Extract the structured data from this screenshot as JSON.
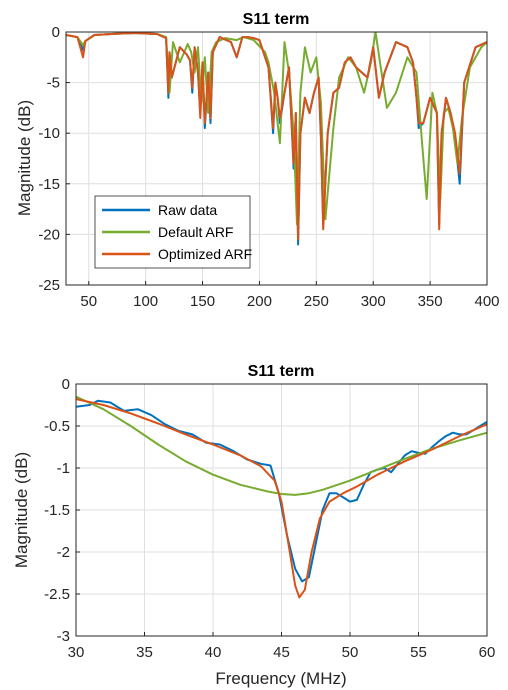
{
  "chart_data": [
    {
      "type": "line",
      "title": "S11 term",
      "xlabel": "",
      "ylabel": "Magnitude (dB)",
      "xlim": [
        30,
        400
      ],
      "ylim": [
        -25,
        0
      ],
      "xticks": [
        50,
        100,
        150,
        200,
        250,
        300,
        350,
        400
      ],
      "yticks": [
        0,
        -5,
        -10,
        -15,
        -20,
        -25
      ],
      "grid": true,
      "legend": {
        "placement": "bottom-left",
        "entries": [
          "Raw data",
          "Default ARF",
          "Optimized ARF"
        ]
      },
      "series": [
        {
          "name": "Raw data",
          "color": "#0072BD",
          "x": [
            30,
            40,
            45,
            47,
            55,
            70,
            90,
            110,
            118,
            120,
            121,
            123,
            130,
            136,
            139,
            141,
            143,
            146,
            148,
            150,
            152,
            155,
            157,
            159,
            165,
            175,
            180,
            185,
            190,
            195,
            200,
            205,
            208,
            212,
            214,
            216,
            218,
            222,
            226,
            230,
            232,
            234,
            236,
            240,
            244,
            248,
            252,
            254,
            256,
            260,
            265,
            270,
            275,
            280,
            285,
            290,
            295,
            300,
            305,
            310,
            320,
            330,
            335,
            338,
            340,
            344,
            350,
            356,
            358,
            360,
            364,
            368,
            372,
            376,
            380,
            390,
            400
          ],
          "y": [
            -0.3,
            -0.5,
            -1.8,
            -0.9,
            -0.3,
            -0.2,
            -0.1,
            -0.2,
            -0.6,
            -6.5,
            -2.0,
            -4.5,
            -1.5,
            -2.2,
            -2.8,
            -6.0,
            -1.5,
            -4.0,
            -8.0,
            -3.0,
            -9.5,
            -4.0,
            -9.0,
            -2.0,
            -0.5,
            -1.0,
            -2.5,
            -0.5,
            -0.5,
            -0.6,
            -0.8,
            -2.5,
            -3.5,
            -10.0,
            -5.0,
            -6.5,
            -9.0,
            -6.0,
            -3.5,
            -13.5,
            -8.0,
            -21.0,
            -10.0,
            -6.5,
            -8.0,
            -6.0,
            -4.5,
            -10.5,
            -19.0,
            -10.0,
            -6.0,
            -5.5,
            -3.0,
            -2.5,
            -3.5,
            -4.0,
            -4.5,
            -1.5,
            -6.5,
            -4.0,
            -1.0,
            -1.5,
            -3.0,
            -6.5,
            -9.5,
            -9.0,
            -6.5,
            -8.0,
            -19.0,
            -10.5,
            -6.5,
            -8.0,
            -10.5,
            -15.0,
            -5.0,
            -1.5,
            -1.0
          ]
        },
        {
          "name": "Default ARF",
          "color": "#77AC30",
          "x": [
            30,
            40,
            45,
            47,
            55,
            70,
            90,
            110,
            118,
            121,
            124,
            130,
            137,
            140,
            143,
            146,
            149,
            152,
            155,
            158,
            162,
            170,
            180,
            186,
            195,
            205,
            208,
            213,
            218,
            222,
            226,
            230,
            233,
            236,
            240,
            245,
            250,
            254,
            258,
            265,
            270,
            278,
            285,
            292,
            298,
            302,
            306,
            312,
            320,
            330,
            338,
            343,
            347,
            352,
            356,
            359,
            362,
            366,
            370,
            374,
            378,
            385,
            395,
            400
          ],
          "y": [
            -0.3,
            -0.5,
            -1.3,
            -0.9,
            -0.3,
            -0.2,
            -0.1,
            -0.2,
            -0.5,
            -6.0,
            -1.0,
            -3.0,
            -1.2,
            -2.0,
            -4.0,
            -1.5,
            -7.0,
            -2.5,
            -8.0,
            -2.0,
            -1.0,
            -0.6,
            -0.8,
            -0.5,
            -0.8,
            -2.0,
            -3.0,
            -6.0,
            -11.0,
            -1.0,
            -4.0,
            -10.0,
            -19.0,
            -6.0,
            -1.5,
            -4.0,
            -2.5,
            -7.0,
            -18.5,
            -9.5,
            -4.5,
            -2.5,
            -3.5,
            -6.0,
            -3.0,
            0.0,
            -3.0,
            -7.5,
            -6.0,
            -2.5,
            -4.0,
            -11.0,
            -16.5,
            -6.0,
            -8.0,
            -16.5,
            -8.0,
            -7.5,
            -9.5,
            -13.0,
            -8.5,
            -3.5,
            -1.5,
            -1.0
          ]
        },
        {
          "name": "Optimized ARF",
          "color": "#D95319",
          "x": [
            30,
            40,
            45,
            47,
            55,
            70,
            90,
            110,
            118,
            120,
            121,
            123,
            130,
            136,
            139,
            141,
            143,
            146,
            148,
            150,
            152,
            155,
            157,
            159,
            165,
            175,
            180,
            185,
            190,
            195,
            200,
            205,
            208,
            212,
            214,
            216,
            218,
            222,
            226,
            230,
            232,
            234,
            236,
            240,
            244,
            248,
            252,
            254,
            256,
            260,
            265,
            270,
            275,
            280,
            285,
            290,
            295,
            300,
            305,
            310,
            320,
            330,
            335,
            338,
            340,
            344,
            350,
            356,
            358,
            360,
            364,
            368,
            372,
            376,
            380,
            390,
            400
          ],
          "y": [
            -0.3,
            -0.5,
            -2.5,
            -0.9,
            -0.3,
            -0.2,
            -0.1,
            -0.2,
            -0.6,
            -6.0,
            -2.0,
            -4.5,
            -1.5,
            -2.2,
            -2.8,
            -5.5,
            -1.5,
            -4.0,
            -8.5,
            -3.0,
            -9.0,
            -4.0,
            -8.5,
            -2.0,
            -0.5,
            -1.0,
            -2.5,
            -0.5,
            -0.5,
            -0.6,
            -0.8,
            -2.5,
            -3.5,
            -9.5,
            -5.0,
            -6.5,
            -8.5,
            -6.0,
            -3.5,
            -13.0,
            -8.0,
            -20.5,
            -10.0,
            -6.5,
            -8.0,
            -6.0,
            -4.5,
            -10.0,
            -19.5,
            -10.0,
            -6.0,
            -5.5,
            -3.0,
            -2.5,
            -3.5,
            -4.0,
            -4.5,
            -1.5,
            -6.5,
            -4.0,
            -1.0,
            -1.5,
            -3.0,
            -6.5,
            -9.0,
            -9.0,
            -6.5,
            -8.0,
            -19.5,
            -10.0,
            -6.5,
            -8.0,
            -10.0,
            -14.0,
            -5.0,
            -1.5,
            -1.0
          ]
        }
      ]
    },
    {
      "type": "line",
      "title": "S11 term",
      "xlabel": "Frequency (MHz)",
      "ylabel": "Magnitude (dB)",
      "xlim": [
        30,
        60
      ],
      "ylim": [
        -3,
        0
      ],
      "xticks": [
        30,
        35,
        40,
        45,
        50,
        55,
        60
      ],
      "yticks": [
        0,
        -0.5,
        -1,
        -1.5,
        -2,
        -2.5,
        -3
      ],
      "grid": true,
      "series": [
        {
          "name": "Raw data",
          "color": "#0072BD",
          "x": [
            30,
            31,
            31.6,
            32.5,
            33.5,
            34.5,
            35.5,
            36.5,
            37.5,
            38.5,
            39.5,
            40.5,
            41.5,
            42.5,
            43.5,
            44.2,
            44.8,
            45.4,
            46,
            46.5,
            47,
            47.5,
            48,
            48.5,
            49,
            49.5,
            50,
            50.5,
            51,
            51.5,
            52,
            52.5,
            53,
            53.5,
            54,
            54.5,
            55,
            55.5,
            56,
            56.5,
            57,
            57.5,
            58,
            58.5,
            59,
            59.5,
            60
          ],
          "y": [
            -0.27,
            -0.25,
            -0.2,
            -0.22,
            -0.32,
            -0.3,
            -0.37,
            -0.48,
            -0.56,
            -0.6,
            -0.7,
            -0.72,
            -0.8,
            -0.9,
            -0.95,
            -0.97,
            -1.3,
            -1.8,
            -2.2,
            -2.35,
            -2.3,
            -1.9,
            -1.5,
            -1.3,
            -1.3,
            -1.35,
            -1.4,
            -1.38,
            -1.2,
            -1.05,
            -1.02,
            -1.0,
            -1.05,
            -0.95,
            -0.85,
            -0.8,
            -0.82,
            -0.83,
            -0.75,
            -0.68,
            -0.62,
            -0.58,
            -0.6,
            -0.6,
            -0.55,
            -0.5,
            -0.45
          ]
        },
        {
          "name": "Default ARF",
          "color": "#77AC30",
          "x": [
            30,
            32,
            34,
            36,
            38,
            40,
            42,
            44,
            45,
            46,
            47,
            48,
            50,
            52,
            54,
            56,
            58,
            60
          ],
          "y": [
            -0.15,
            -0.3,
            -0.5,
            -0.72,
            -0.92,
            -1.08,
            -1.2,
            -1.28,
            -1.31,
            -1.32,
            -1.3,
            -1.26,
            -1.15,
            -1.02,
            -0.89,
            -0.77,
            -0.67,
            -0.58
          ]
        },
        {
          "name": "Optimized ARF",
          "color": "#D95319",
          "x": [
            30,
            32,
            34,
            36,
            38,
            40,
            42,
            43.5,
            44.5,
            45,
            45.5,
            46,
            46.3,
            46.7,
            47.2,
            47.8,
            48.5,
            49.5,
            50.5,
            52,
            54,
            56,
            58,
            60
          ],
          "y": [
            -0.18,
            -0.25,
            -0.35,
            -0.47,
            -0.6,
            -0.72,
            -0.85,
            -0.98,
            -1.15,
            -1.4,
            -1.9,
            -2.4,
            -2.54,
            -2.45,
            -2.0,
            -1.6,
            -1.4,
            -1.3,
            -1.22,
            -1.08,
            -0.92,
            -0.78,
            -0.62,
            -0.48
          ]
        }
      ]
    }
  ]
}
